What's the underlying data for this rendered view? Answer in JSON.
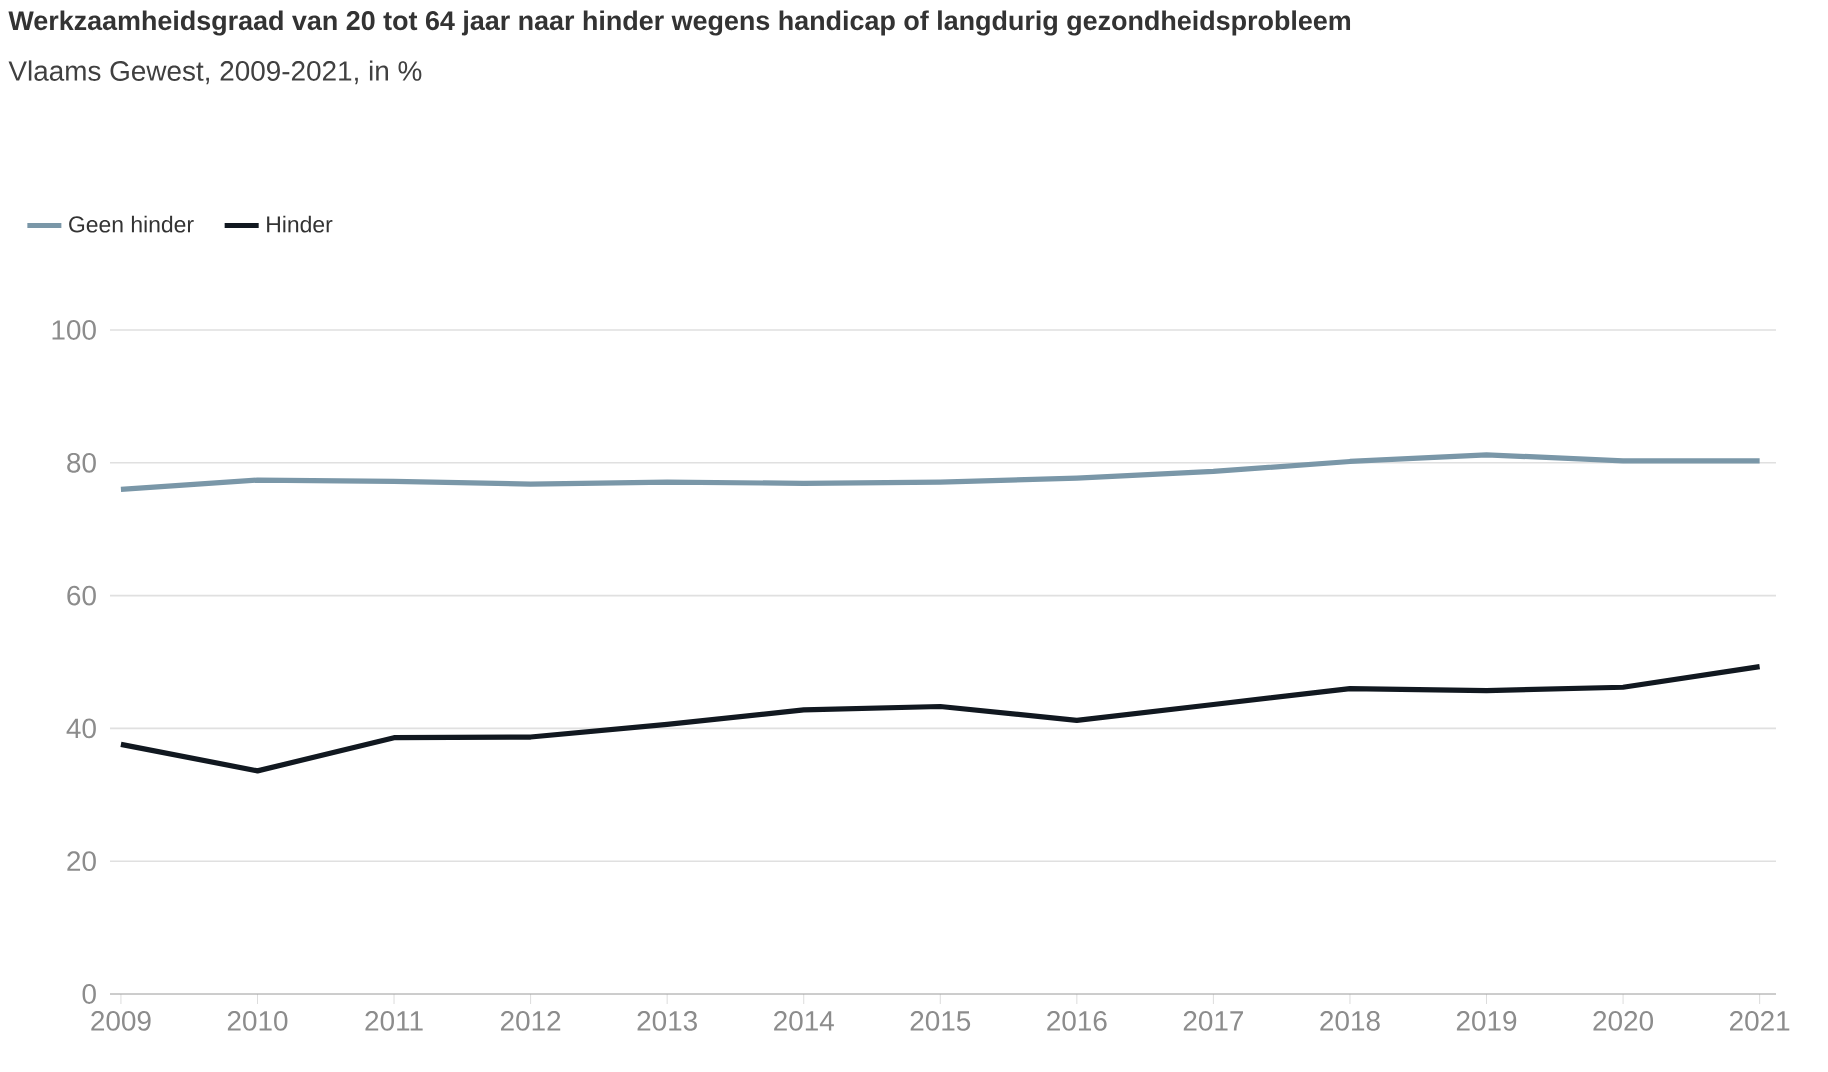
{
  "chart_data": {
    "type": "line",
    "title": "Werkzaamheidsgraad van 20 tot 64 jaar naar hinder wegens handicap of langdurig gezondheidsprobleem",
    "subtitle": "Vlaams Gewest, 2009-2021, in %",
    "categories": [
      "2009",
      "2010",
      "2011",
      "2012",
      "2013",
      "2014",
      "2015",
      "2016",
      "2017",
      "2018",
      "2019",
      "2020",
      "2021"
    ],
    "series": [
      {
        "name": "Geen hinder",
        "color": "#7a97a8",
        "values": [
          76.0,
          77.4,
          77.2,
          76.8,
          77.1,
          76.9,
          77.1,
          77.7,
          78.7,
          80.2,
          81.2,
          80.3,
          80.3
        ]
      },
      {
        "name": "Hinder",
        "color": "#111820",
        "values": [
          37.6,
          33.6,
          38.6,
          38.7,
          40.6,
          42.8,
          43.3,
          41.2,
          43.6,
          46.0,
          45.7,
          46.2,
          49.3
        ]
      }
    ],
    "ylim": [
      0,
      100
    ],
    "yticks": [
      0,
      20,
      40,
      60,
      80,
      100
    ],
    "grid": "y",
    "legend": "top left",
    "marker": "none",
    "line_style": "solid"
  }
}
